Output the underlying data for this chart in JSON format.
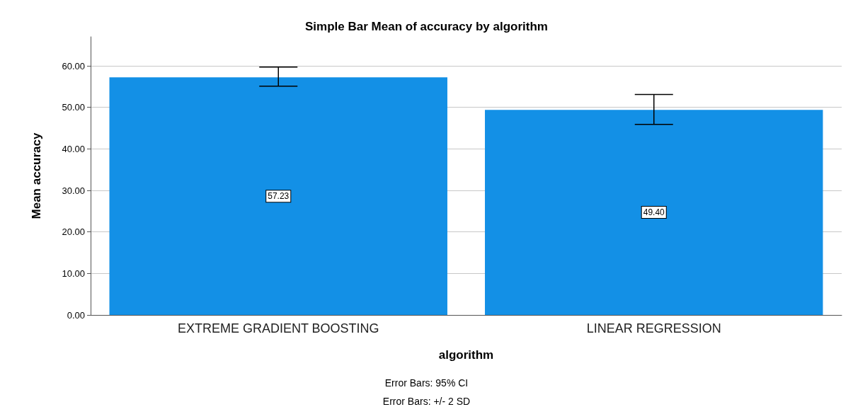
{
  "chart_data": {
    "type": "bar",
    "title": "Simple Bar Mean of accuracy by algorithm",
    "xlabel": "algorithm",
    "ylabel": "Mean accuracy",
    "categories": [
      "EXTREME GRADIENT BOOSTING",
      "LINEAR REGRESSION"
    ],
    "values": [
      57.23,
      49.4
    ],
    "color": "#1390e6",
    "errors": [
      [
        55.1,
        59.7
      ],
      [
        45.9,
        53.1
      ]
    ],
    "value_labels": [
      "57.23",
      "49.40"
    ],
    "ylim": [
      0,
      67
    ],
    "yticks": [
      {
        "value": 0,
        "label": "0.00"
      },
      {
        "value": 10,
        "label": "10.00"
      },
      {
        "value": 20,
        "label": "20.00"
      },
      {
        "value": 30,
        "label": "30.00"
      },
      {
        "value": 40,
        "label": "40.00"
      },
      {
        "value": 50,
        "label": "50.00"
      },
      {
        "value": 60,
        "label": "60.00"
      }
    ],
    "grid": "y",
    "annotations": [
      "Error Bars: 95% CI",
      "Error Bars: +/- 2 SD"
    ]
  }
}
